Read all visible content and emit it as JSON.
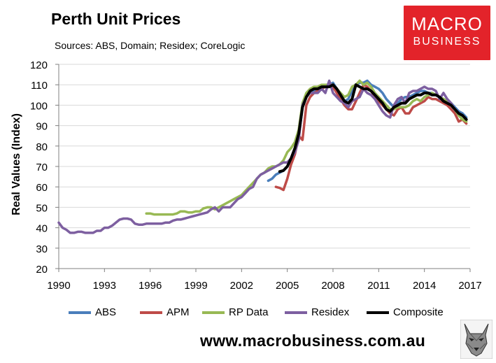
{
  "header": {
    "title": "Perth Unit Prices",
    "subtitle": "Sources: ABS, Domain; Residex; CoreLogic"
  },
  "logo": {
    "line1": "MACRO",
    "line2": "BUSINESS"
  },
  "footer": {
    "url": "www.macrobusiness.com.au"
  },
  "chart_data": {
    "type": "line",
    "title": "Perth Unit Prices",
    "xlabel": "",
    "ylabel": "Real Values (Index)",
    "xlim": [
      1990,
      2017
    ],
    "ylim": [
      20,
      120
    ],
    "xticks": [
      1990,
      1993,
      1996,
      1999,
      2002,
      2005,
      2008,
      2011,
      2014,
      2017
    ],
    "yticks": [
      20,
      30,
      40,
      50,
      60,
      70,
      80,
      90,
      100,
      110,
      120
    ],
    "legend_position": "bottom",
    "series": [
      {
        "name": "ABS",
        "color": "#4a7ebb",
        "width": 3.5,
        "x": [
          2003.75,
          2004.0,
          2004.25,
          2004.5,
          2004.75,
          2005.0,
          2005.25,
          2005.5,
          2005.75,
          2006.0,
          2006.25,
          2006.5,
          2006.75,
          2007.0,
          2007.25,
          2007.5,
          2007.75,
          2008.0,
          2008.25,
          2008.5,
          2008.75,
          2009.0,
          2009.25,
          2009.5,
          2009.75,
          2010.0,
          2010.25,
          2010.5,
          2010.75,
          2011.0,
          2011.25,
          2011.5,
          2011.75,
          2012.0,
          2012.25,
          2012.5,
          2012.75,
          2013.0,
          2013.25,
          2013.5,
          2013.75,
          2014.0,
          2014.25,
          2014.5,
          2014.75,
          2015.0,
          2015.25,
          2015.5,
          2015.75,
          2016.0,
          2016.25,
          2016.5,
          2016.75
        ],
        "y": [
          63,
          64,
          66,
          67,
          68,
          70,
          74,
          78,
          84,
          99,
          104,
          107,
          107,
          108,
          109,
          109,
          110,
          111,
          108,
          104,
          102,
          103,
          107,
          110,
          111,
          111,
          112,
          110,
          109,
          108,
          106,
          103,
          101,
          99,
          101,
          103,
          104,
          104,
          105,
          106,
          107,
          107,
          106,
          106,
          105,
          104,
          103,
          102,
          101,
          99,
          97,
          96,
          94
        ]
      },
      {
        "name": "APM",
        "color": "#be4b48",
        "width": 3.5,
        "x": [
          2004.25,
          2004.5,
          2004.75,
          2005.0,
          2005.25,
          2005.5,
          2005.75,
          2006.0,
          2006.25,
          2006.5,
          2006.75,
          2007.0,
          2007.25,
          2007.5,
          2007.75,
          2008.0,
          2008.25,
          2008.5,
          2008.75,
          2009.0,
          2009.25,
          2009.5,
          2009.75,
          2010.0,
          2010.25,
          2010.5,
          2010.75,
          2011.0,
          2011.25,
          2011.5,
          2011.75,
          2012.0,
          2012.25,
          2012.5,
          2012.75,
          2013.0,
          2013.25,
          2013.5,
          2013.75,
          2014.0,
          2014.25,
          2014.5,
          2014.75,
          2015.0,
          2015.25,
          2015.5,
          2015.75,
          2016.0,
          2016.25,
          2016.5,
          2016.75
        ],
        "y": [
          60,
          59.5,
          58.5,
          64,
          71,
          76,
          85,
          83,
          100,
          104,
          106,
          107,
          108,
          109,
          109,
          109,
          106,
          103,
          100,
          98,
          98,
          102,
          106,
          110,
          109,
          107,
          104,
          102,
          100,
          98,
          96,
          95,
          98,
          99,
          96,
          96,
          99,
          100,
          101,
          102,
          104,
          103,
          103,
          102,
          101,
          100,
          98,
          96,
          92,
          93,
          91
        ]
      },
      {
        "name": "RP Data",
        "color": "#98b954",
        "width": 3.5,
        "x": [
          1995.75,
          1996.0,
          1996.25,
          1996.5,
          1996.75,
          1997.0,
          1997.25,
          1997.5,
          1997.75,
          1998.0,
          1998.25,
          1998.5,
          1998.75,
          1999.0,
          1999.25,
          1999.5,
          1999.75,
          2000.0,
          2000.25,
          2000.5,
          2000.75,
          2001.0,
          2001.25,
          2001.5,
          2001.75,
          2002.0,
          2002.25,
          2002.5,
          2002.75,
          2003.0,
          2003.25,
          2003.5,
          2003.75,
          2004.0,
          2004.25,
          2004.5,
          2004.75,
          2005.0,
          2005.25,
          2005.5,
          2005.75,
          2006.0,
          2006.25,
          2006.5,
          2006.75,
          2007.0,
          2007.25,
          2007.5,
          2007.75,
          2008.0,
          2008.25,
          2008.5,
          2008.75,
          2009.0,
          2009.25,
          2009.5,
          2009.75,
          2010.0,
          2010.25,
          2010.5,
          2010.75,
          2011.0,
          2011.25,
          2011.5,
          2011.75,
          2012.0,
          2012.25,
          2012.5,
          2012.75,
          2013.0,
          2013.25,
          2013.5,
          2013.75,
          2014.0,
          2014.25,
          2014.5,
          2014.75,
          2015.0,
          2015.25,
          2015.5,
          2015.75,
          2016.0,
          2016.25,
          2016.5,
          2016.75
        ],
        "y": [
          47,
          47,
          46.5,
          46.5,
          46.5,
          46.5,
          46.5,
          46.5,
          47,
          48,
          48,
          47.5,
          47.5,
          48,
          48,
          49.5,
          50,
          50,
          49,
          50,
          51,
          52,
          53,
          54,
          55,
          56,
          58,
          60,
          62,
          64,
          66,
          67,
          69,
          70,
          70,
          71,
          73,
          77,
          79,
          82,
          88,
          101,
          106,
          108,
          109,
          109,
          110,
          110,
          110,
          110,
          108,
          106,
          104,
          105,
          109,
          110,
          112,
          110,
          111,
          109,
          106,
          104,
          102,
          100,
          98,
          98,
          99,
          99,
          99,
          100,
          102,
          103,
          102,
          104,
          105,
          106,
          105,
          104,
          103,
          102,
          100,
          98,
          95,
          93,
          92
        ]
      },
      {
        "name": "Residex",
        "color": "#7d5fa0",
        "width": 3.5,
        "x": [
          1990.0,
          1990.25,
          1990.5,
          1990.75,
          1991.0,
          1991.25,
          1991.5,
          1991.75,
          1992.0,
          1992.25,
          1992.5,
          1992.75,
          1993.0,
          1993.25,
          1993.5,
          1993.75,
          1994.0,
          1994.25,
          1994.5,
          1994.75,
          1995.0,
          1995.25,
          1995.5,
          1995.75,
          1996.0,
          1996.25,
          1996.5,
          1996.75,
          1997.0,
          1997.25,
          1997.5,
          1997.75,
          1998.0,
          1998.25,
          1998.5,
          1998.75,
          1999.0,
          1999.25,
          1999.5,
          1999.75,
          2000.0,
          2000.25,
          2000.5,
          2000.75,
          2001.0,
          2001.25,
          2001.5,
          2001.75,
          2002.0,
          2002.25,
          2002.5,
          2002.75,
          2003.0,
          2003.25,
          2003.5,
          2003.75,
          2004.0,
          2004.25,
          2004.5,
          2004.75,
          2005.0,
          2005.25,
          2005.5,
          2005.75,
          2006.0,
          2006.25,
          2006.5,
          2006.75,
          2007.0,
          2007.25,
          2007.5,
          2007.75,
          2008.0,
          2008.25,
          2008.5,
          2008.75,
          2009.0,
          2009.25,
          2009.5,
          2009.75,
          2010.0,
          2010.25,
          2010.5,
          2010.75,
          2011.0,
          2011.25,
          2011.5,
          2011.75,
          2012.0,
          2012.25,
          2012.5,
          2012.75,
          2013.0,
          2013.25,
          2013.5,
          2013.75,
          2014.0,
          2014.25,
          2014.5,
          2014.75,
          2015.0,
          2015.25,
          2015.5,
          2015.75,
          2016.0,
          2016.25,
          2016.5,
          2016.75
        ],
        "y": [
          42.5,
          40,
          39,
          37.5,
          37.5,
          38,
          38,
          37.5,
          37.5,
          37.5,
          38.5,
          38.5,
          40,
          40,
          41,
          42.5,
          44,
          44.5,
          44.5,
          44,
          42,
          41.5,
          41.5,
          42,
          42,
          42,
          42,
          42,
          42.5,
          42.5,
          43.5,
          44,
          44,
          44.5,
          45,
          45.5,
          46,
          46.5,
          47,
          47.5,
          49,
          50,
          48,
          50,
          50,
          50,
          52,
          54,
          55,
          57,
          59,
          60,
          64,
          66,
          67,
          68,
          69,
          70,
          71,
          72,
          72,
          74,
          77,
          83,
          100,
          104,
          106,
          106,
          106,
          108,
          106,
          112,
          106,
          104,
          102,
          101,
          99,
          102,
          103,
          104,
          108,
          106,
          105,
          103,
          100,
          97,
          95,
          94,
          100,
          103,
          104,
          101,
          106,
          107,
          107,
          108,
          109,
          108,
          108,
          107,
          103,
          106,
          103,
          101,
          98,
          96,
          95,
          93
        ]
      },
      {
        "name": "Composite",
        "color": "#000000",
        "width": 4,
        "x": [
          2004.5,
          2004.75,
          2005.0,
          2005.25,
          2005.5,
          2005.75,
          2006.0,
          2006.25,
          2006.5,
          2006.75,
          2007.0,
          2007.25,
          2007.5,
          2007.75,
          2008.0,
          2008.25,
          2008.5,
          2008.75,
          2009.0,
          2009.25,
          2009.5,
          2009.75,
          2010.0,
          2010.25,
          2010.5,
          2010.75,
          2011.0,
          2011.25,
          2011.5,
          2011.75,
          2012.0,
          2012.25,
          2012.5,
          2012.75,
          2013.0,
          2013.25,
          2013.5,
          2013.75,
          2014.0,
          2014.25,
          2014.5,
          2014.75,
          2015.0,
          2015.25,
          2015.5,
          2015.75,
          2016.0,
          2016.25,
          2016.5,
          2016.75
        ],
        "y": [
          67.5,
          68,
          70,
          74,
          79,
          86,
          99,
          104,
          107,
          108,
          108,
          109,
          109,
          109,
          110,
          108,
          105,
          102,
          101,
          103,
          110,
          109,
          108,
          108,
          107,
          105,
          103,
          101,
          98,
          97,
          99,
          100,
          101,
          101,
          103,
          104,
          105,
          105,
          106,
          106,
          105,
          105,
          104,
          102,
          101,
          100,
          98,
          96,
          95,
          93
        ]
      }
    ]
  }
}
